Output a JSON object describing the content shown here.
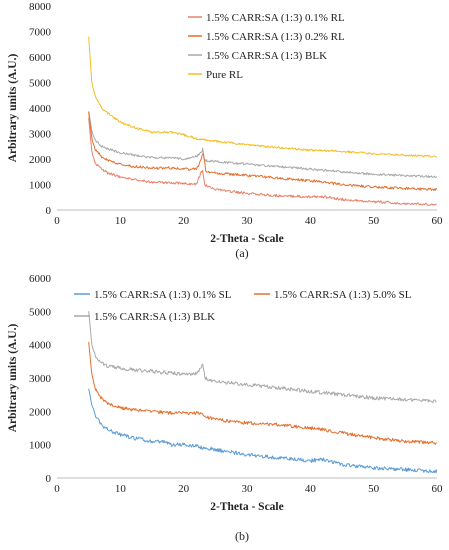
{
  "chart_data": [
    {
      "type": "line",
      "caption": "(a)",
      "xlabel": "2-Theta - Scale",
      "ylabel": "Arbitrary units (A.U.)",
      "xlim": [
        0,
        60
      ],
      "ylim": [
        0,
        8000
      ],
      "xticks": [
        0,
        10,
        20,
        30,
        40,
        50,
        60
      ],
      "yticks": [
        0,
        1000,
        2000,
        3000,
        4000,
        5000,
        6000,
        7000,
        8000
      ],
      "grid": false,
      "legend_position": "top-right",
      "series": [
        {
          "name": "1.5% CARR:SA (1:3) 0.1% RL",
          "color": "#e8826a",
          "x": [
            5,
            5.5,
            6,
            7,
            8,
            10,
            12,
            15,
            18,
            20,
            22,
            22.8,
            23,
            23.3,
            25,
            30,
            35,
            40,
            42,
            45,
            50,
            55,
            60
          ],
          "y": [
            3600,
            2300,
            1850,
            1600,
            1450,
            1300,
            1200,
            1100,
            1050,
            1050,
            1000,
            1500,
            1550,
            1000,
            800,
            650,
            560,
            520,
            520,
            420,
            320,
            260,
            200
          ],
          "noise": 50
        },
        {
          "name": "1.5% CARR:SA (1:3) 0.2% RL",
          "color": "#e46f2c",
          "x": [
            5,
            5.5,
            6,
            7,
            8,
            10,
            12,
            15,
            18,
            20,
            22,
            22.8,
            23.1,
            23.5,
            25,
            30,
            35,
            40,
            42,
            45,
            50,
            55,
            60
          ],
          "y": [
            3850,
            2800,
            2400,
            2100,
            1950,
            1800,
            1700,
            1650,
            1650,
            1600,
            1600,
            2000,
            2300,
            1500,
            1450,
            1350,
            1250,
            1150,
            1100,
            1000,
            900,
            850,
            800
          ],
          "noise": 50
        },
        {
          "name": "1.5% CARR:SA (1:3) BLK",
          "color": "#a8a8a8",
          "x": [
            5,
            5.5,
            6,
            7,
            8,
            10,
            12,
            15,
            18,
            20,
            22,
            22.8,
            23,
            23.3,
            25,
            30,
            35,
            40,
            45,
            50,
            55,
            60
          ],
          "y": [
            3900,
            3100,
            2750,
            2500,
            2400,
            2250,
            2150,
            2050,
            2050,
            2000,
            2100,
            2250,
            2400,
            1950,
            1900,
            1800,
            1700,
            1600,
            1500,
            1400,
            1350,
            1300
          ],
          "noise": 45
        },
        {
          "name": "Pure RL",
          "color": "#f5bd21",
          "x": [
            5,
            5.5,
            6,
            7,
            8,
            10,
            12,
            15,
            18,
            20,
            22,
            25,
            30,
            35,
            40,
            45,
            50,
            55,
            60
          ],
          "y": [
            6800,
            5000,
            4500,
            4000,
            3800,
            3450,
            3250,
            3050,
            3050,
            2950,
            2800,
            2700,
            2550,
            2450,
            2350,
            2300,
            2200,
            2150,
            2100
          ],
          "noise": 40
        }
      ]
    },
    {
      "type": "line",
      "caption": "(b)",
      "xlabel": "2-Theta - Scale",
      "ylabel": "Arbitrary units (A.U.)",
      "xlim": [
        0,
        60
      ],
      "ylim": [
        0,
        6000
      ],
      "xticks": [
        0,
        10,
        20,
        30,
        40,
        50,
        60
      ],
      "yticks": [
        0,
        1000,
        2000,
        3000,
        4000,
        5000,
        6000
      ],
      "grid": false,
      "legend_position": "top",
      "series": [
        {
          "name": "1.5% CARR:SA (1:3) 0.1% SL",
          "color": "#5b9bd5",
          "x": [
            5,
            5.5,
            6,
            7,
            8,
            10,
            12,
            15,
            16.5,
            18,
            20,
            22,
            25,
            30,
            35,
            40,
            42,
            43,
            45,
            50,
            55,
            60
          ],
          "y": [
            2700,
            2200,
            1900,
            1600,
            1450,
            1300,
            1200,
            1100,
            1100,
            1000,
            1000,
            950,
            850,
            700,
            600,
            520,
            550,
            500,
            400,
            300,
            250,
            200
          ],
          "noise": 55
        },
        {
          "name": "1.5% CARR:SA (1:3) 5.0% SL",
          "color": "#e46f2c",
          "x": [
            5,
            5.5,
            6,
            7,
            8,
            10,
            12,
            15,
            18,
            20,
            22,
            23,
            24,
            25,
            30,
            35,
            40,
            42,
            45,
            50,
            55,
            60
          ],
          "y": [
            4100,
            3100,
            2700,
            2400,
            2250,
            2100,
            2050,
            2000,
            1950,
            1950,
            1950,
            1900,
            1800,
            1750,
            1650,
            1600,
            1500,
            1450,
            1350,
            1200,
            1100,
            1050
          ],
          "noise": 50
        },
        {
          "name": "1.5% CARR:SA (1:3) BLK",
          "color": "#a8a8a8",
          "x": [
            5,
            5.5,
            6,
            7,
            8,
            10,
            12,
            15,
            18,
            20,
            22,
            22.8,
            23,
            23.4,
            25,
            30,
            35,
            40,
            45,
            50,
            55,
            60
          ],
          "y": [
            5000,
            4000,
            3700,
            3450,
            3350,
            3300,
            3250,
            3200,
            3150,
            3100,
            3150,
            3300,
            3450,
            3000,
            2900,
            2800,
            2700,
            2600,
            2500,
            2400,
            2350,
            2300
          ],
          "noise": 55
        }
      ]
    }
  ]
}
